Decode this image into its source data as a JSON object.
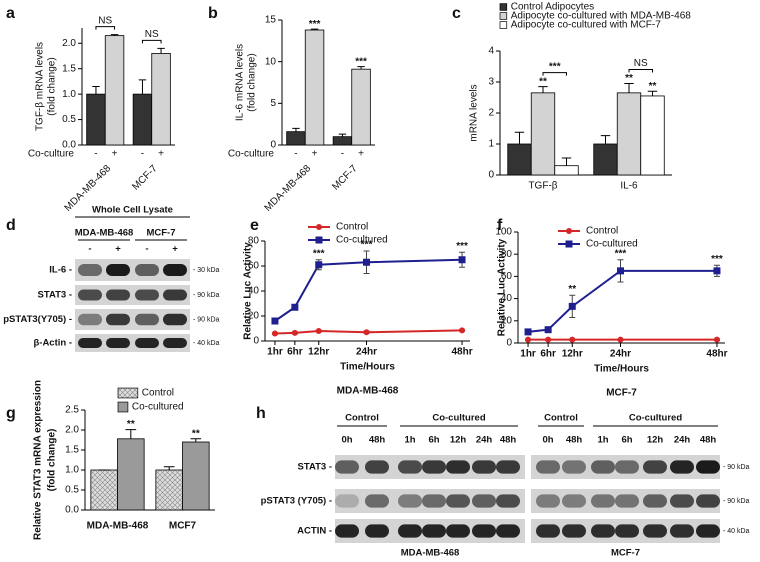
{
  "chart_data": [
    {
      "label": "a",
      "type": "bar",
      "ylabel": [
        "TGF-β mRNA levels",
        "(fold change)"
      ],
      "categories": [
        "-",
        "+",
        "-",
        "+"
      ],
      "groups": [
        "MDA-MB-468",
        "MCF-7"
      ],
      "row_label": "Co-culture",
      "values": [
        1.0,
        2.15,
        1.0,
        1.8
      ],
      "errors": [
        0.15,
        0.02,
        0.28,
        0.1
      ],
      "colors": [
        "#333333",
        "#d3d3d3",
        "#333333",
        "#d3d3d3"
      ],
      "group_annotations": [
        "NS",
        "NS"
      ],
      "ylim": [
        0,
        2.3
      ],
      "yticks": [
        {
          "value": 0,
          "label": "0.0"
        },
        0.5,
        {
          "value": 1,
          "label": "1.0"
        },
        1.5,
        {
          "value": 2,
          "label": "2.0"
        }
      ]
    },
    {
      "label": "b",
      "type": "bar",
      "ylabel": [
        "IL-6 mRNA levels",
        "(fold change)"
      ],
      "categories": [
        "-",
        "+",
        "-",
        "+"
      ],
      "groups": [
        "MDA-MB-468",
        "MCF-7"
      ],
      "row_label": "Co-culture",
      "values": [
        1.6,
        13.8,
        1.0,
        9.1
      ],
      "errors": [
        0.4,
        0.1,
        0.3,
        0.3
      ],
      "colors": [
        "#333333",
        "#d3d3d3",
        "#333333",
        "#d3d3d3"
      ],
      "significance": [
        null,
        "***",
        null,
        "***"
      ],
      "ylim": [
        0,
        15
      ],
      "yticks": [
        0,
        5,
        10,
        15
      ]
    },
    {
      "label": "c",
      "type": "bar",
      "ylabel": [
        "mRNA levels"
      ],
      "categories": [
        "TGF-β",
        "IL-6"
      ],
      "series": [
        {
          "name": "Control Adipocytes",
          "color": "#333333",
          "values": [
            1.0,
            1.0
          ],
          "errors": [
            0.38,
            0.27
          ]
        },
        {
          "name": "Adipocyte co-cultured with MDA-MB-468",
          "color": "#d3d3d3",
          "values": [
            2.65,
            2.65
          ],
          "errors": [
            0.2,
            0.3
          ],
          "significance": [
            "**",
            "**"
          ]
        },
        {
          "name": "Adipocyte co-cultured with MCF-7",
          "color": "#ffffff",
          "values": [
            0.3,
            2.55
          ],
          "errors": [
            0.25,
            0.15
          ],
          "significance": [
            null,
            "**"
          ]
        }
      ],
      "group_annotations": [
        "***",
        "NS"
      ],
      "ylim": [
        0,
        4
      ],
      "yticks": [
        0,
        1,
        2,
        3,
        4
      ]
    },
    {
      "label": "e",
      "type": "line",
      "ylabel": [
        "Relative Luc Activity"
      ],
      "xlabel": "Time/Hours",
      "caption": "MDA-MB-468",
      "x": [
        1,
        6,
        12,
        24,
        48
      ],
      "series": [
        {
          "name": "Control",
          "color": "#d62728",
          "marker": "circle",
          "values": [
            6,
            6.5,
            8,
            7,
            8.5
          ],
          "errors": [
            0.5,
            0.8,
            0.6,
            0.8,
            0.6
          ]
        },
        {
          "name": "Co-cultured",
          "color": "#1f1f8f",
          "marker": "square",
          "values": [
            16,
            27,
            61,
            63,
            65
          ],
          "errors": [
            1,
            2,
            4,
            9,
            6
          ],
          "significance": [
            null,
            null,
            "***",
            "***",
            "***"
          ]
        }
      ],
      "xlim": [
        -1.5,
        50
      ],
      "xticks": [
        {
          "value": 1,
          "label": "1hr"
        },
        {
          "value": 6,
          "label": "6hr"
        },
        {
          "value": 12,
          "label": "12hr"
        },
        {
          "value": 24,
          "label": "24hr"
        },
        {
          "value": 48,
          "label": "48hr"
        }
      ],
      "ylim": [
        0,
        80
      ],
      "yticks": [
        0,
        20,
        40,
        60,
        80
      ]
    },
    {
      "label": "f",
      "type": "line",
      "ylabel": [
        "Relative Luc Activity"
      ],
      "xlabel": "Time/Hours",
      "caption": "MCF-7",
      "x": [
        1,
        6,
        12,
        24,
        48
      ],
      "series": [
        {
          "name": "Control",
          "color": "#d62728",
          "marker": "circle",
          "values": [
            3,
            3,
            3,
            3,
            3
          ],
          "errors": [
            0.5,
            0.5,
            0.5,
            0.5,
            0.5
          ]
        },
        {
          "name": "Co-cultured",
          "color": "#1f1f8f",
          "marker": "square",
          "values": [
            10,
            12,
            33,
            65,
            65
          ],
          "errors": [
            1.5,
            2,
            10,
            10,
            5
          ],
          "significance": [
            null,
            null,
            "**",
            "***",
            "***"
          ]
        }
      ],
      "xlim": [
        -1.5,
        50
      ],
      "xticks": [
        {
          "value": 1,
          "label": "1hr"
        },
        {
          "value": 6,
          "label": "6hr"
        },
        {
          "value": 12,
          "label": "12hr"
        },
        {
          "value": 24,
          "label": "24hr"
        },
        {
          "value": 48,
          "label": "48hr"
        }
      ],
      "ylim": [
        0,
        100
      ],
      "yticks": [
        0,
        20,
        40,
        60,
        80,
        100
      ]
    },
    {
      "label": "g",
      "type": "bar",
      "ylabel": [
        "Relative STAT3 mRNA expression",
        "(fold change)"
      ],
      "categories": [
        "MDA-MB-468",
        "MCF7"
      ],
      "series": [
        {
          "name": "Control",
          "color": "#d9d9d9",
          "hatch": true,
          "values": [
            1.0,
            1.0
          ],
          "errors": [
            0,
            0.08
          ]
        },
        {
          "name": "Co-cultured",
          "color": "#9a9a9a",
          "values": [
            1.78,
            1.7
          ],
          "errors": [
            0.23,
            0.08
          ],
          "significance": [
            "**",
            "**"
          ]
        }
      ],
      "ylim": [
        0,
        2.5
      ],
      "yticks": [
        {
          "value": 0,
          "label": "0.0"
        },
        0.5,
        {
          "value": 1,
          "label": "1.0"
        },
        1.5,
        {
          "value": 2,
          "label": "2.0"
        },
        2.5
      ]
    }
  ],
  "panel_d": {
    "label": "d",
    "header": "Whole Cell Lysate",
    "groups": [
      "MDA-MB-468",
      "MCF-7"
    ],
    "lanes": [
      "-",
      "+",
      "-",
      "+"
    ],
    "rows": [
      "IL-6 -",
      "STAT3 -",
      "pSTAT3(Y705) -",
      "β-Actin -"
    ],
    "sizes": [
      "- 30 kDa",
      "- 90 kDa",
      "- 90 kDa",
      "- 40 kDa"
    ]
  },
  "panel_h": {
    "label": "h",
    "blocks": [
      {
        "title": "MDA-MB-468",
        "groups": [
          "Control",
          "Co-cultured"
        ],
        "lanes": [
          "0h",
          "48h",
          "1h",
          "6h",
          "12h",
          "24h",
          "48h"
        ]
      },
      {
        "title": "MCF-7",
        "groups": [
          "Control",
          "Co-cultured"
        ],
        "lanes": [
          "0h",
          "48h",
          "1h",
          "6h",
          "12h",
          "24h",
          "48h"
        ]
      }
    ],
    "rows": [
      "STAT3 -",
      "pSTAT3 (Y705) -",
      "ACTIN -"
    ],
    "sizes": [
      "- 90 kDa",
      "- 90 kDa",
      "- 40 kDa"
    ]
  }
}
